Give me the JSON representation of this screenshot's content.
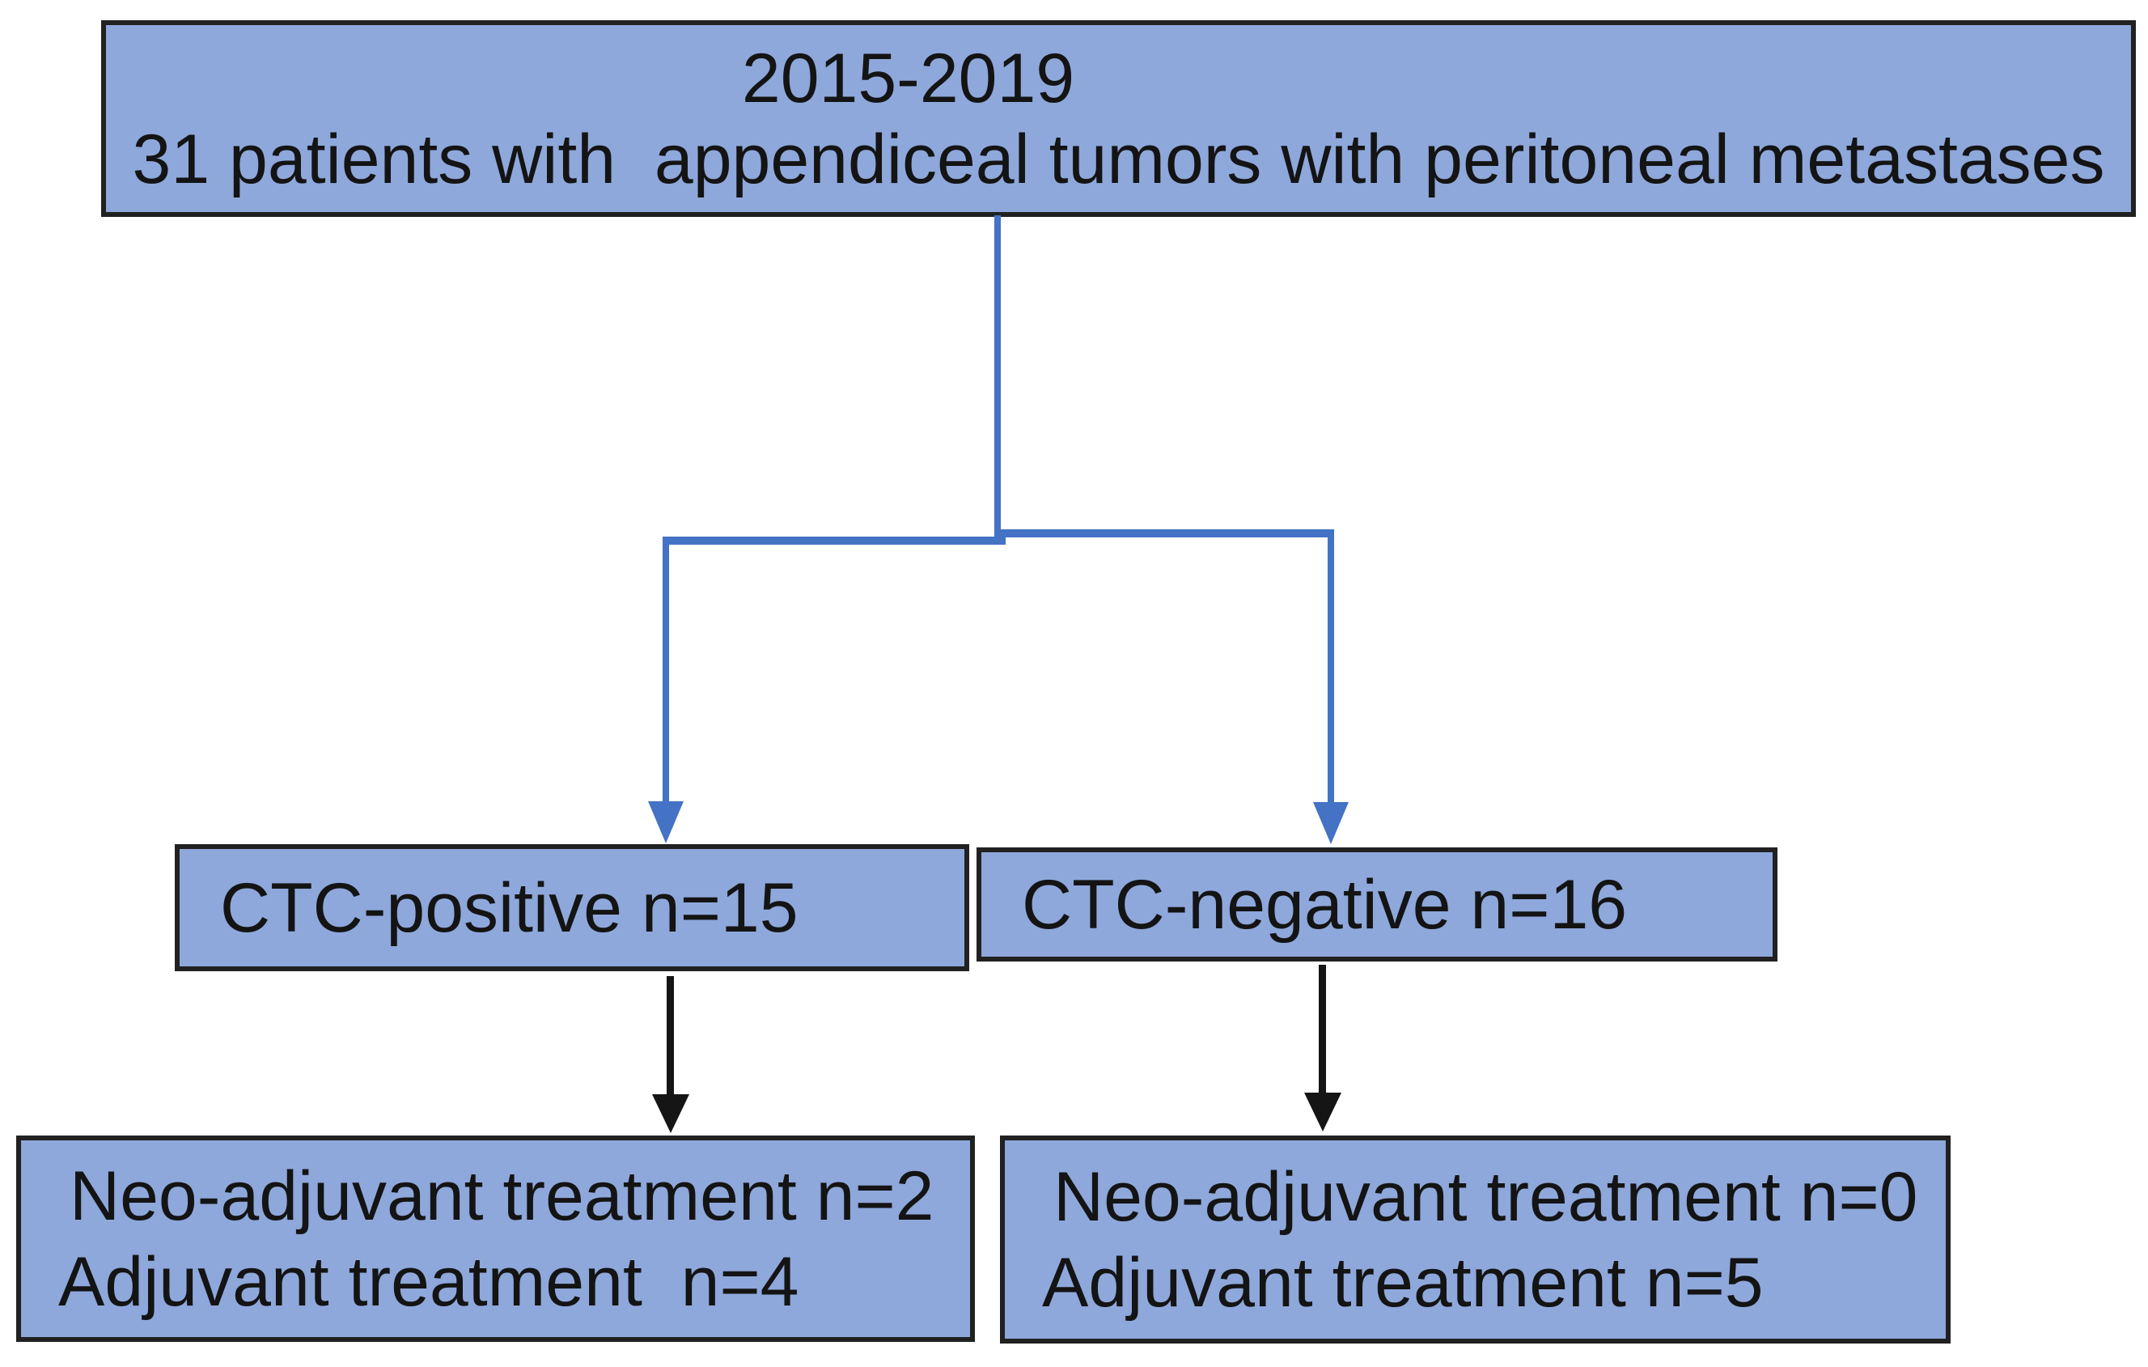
{
  "flowchart": {
    "cohort_box": {
      "line1": "2015-2019",
      "line2": "31 patients with  appendiceal tumors with peritoneal metastases"
    },
    "ctc_positive_box": {
      "label": "CTC-positive n=15"
    },
    "ctc_negative_box": {
      "label": "CTC-negative n=16"
    },
    "outcome_positive_box": {
      "line1": "Neo-adjuvant treatment n=2",
      "line2": "Adjuvant treatment  n=4"
    },
    "outcome_negative_box": {
      "line1": "Neo-adjuvant treatment n=0",
      "line2": "Adjuvant treatment n=5"
    },
    "colors": {
      "background": "#FFFFFF",
      "box_fill": "#8EA8DB",
      "box_border": "#212121",
      "connector_blue": "#4472C4",
      "connector_black": "#151515",
      "text": "#141414"
    }
  }
}
